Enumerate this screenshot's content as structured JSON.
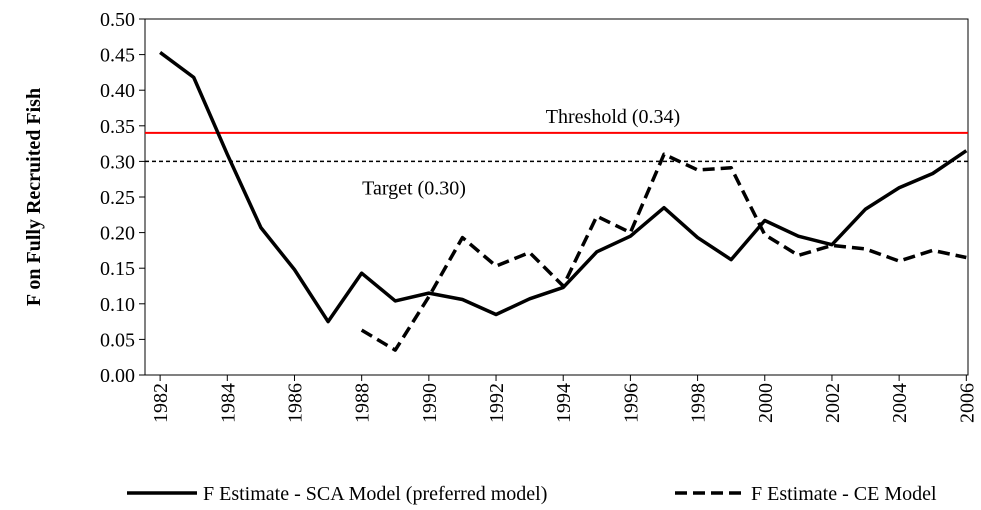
{
  "chart_data": {
    "type": "line",
    "y_label": "F on Fully Recruited Fish",
    "x": [
      1982,
      1983,
      1984,
      1985,
      1986,
      1987,
      1988,
      1989,
      1990,
      1991,
      1992,
      1993,
      1994,
      1995,
      1996,
      1997,
      1998,
      1999,
      2000,
      2001,
      2002,
      2003,
      2004,
      2005,
      2006
    ],
    "xlim": [
      1981.55,
      2006.05
    ],
    "xticks": [
      1982,
      1984,
      1986,
      1988,
      1990,
      1992,
      1994,
      1996,
      1998,
      2000,
      2002,
      2004,
      2006
    ],
    "ylim": [
      0,
      0.5
    ],
    "yticks": [
      {
        "value": 0,
        "label": "0.00"
      },
      {
        "value": 0.05,
        "label": "0.05"
      },
      {
        "value": 0.1,
        "label": "0.10"
      },
      {
        "value": 0.15,
        "label": "0.15"
      },
      {
        "value": 0.2,
        "label": "0.20"
      },
      {
        "value": 0.25,
        "label": "0.25"
      },
      {
        "value": 0.3,
        "label": "0.30"
      },
      {
        "value": 0.35,
        "label": "0.35"
      },
      {
        "value": 0.4,
        "label": "0.40"
      },
      {
        "value": 0.45,
        "label": "0.45"
      },
      {
        "value": 0.5,
        "label": "0.50"
      }
    ],
    "series": [
      {
        "name": "F Estimate - SCA Model (preferred model)",
        "color": "#000000",
        "dash": false,
        "values": [
          0.453,
          0.418,
          0.31,
          0.207,
          0.148,
          0.075,
          0.143,
          0.104,
          0.115,
          0.106,
          0.085,
          0.107,
          0.123,
          0.173,
          0.195,
          0.235,
          0.193,
          0.162,
          0.217,
          0.195,
          0.183,
          0.233,
          0.263,
          0.283,
          0.315
        ]
      },
      {
        "name": "F Estimate - CE Model",
        "color": "#000000",
        "dash": true,
        "values": [
          null,
          null,
          null,
          null,
          null,
          null,
          0.063,
          0.035,
          0.11,
          0.193,
          0.153,
          0.172,
          0.125,
          0.223,
          0.2,
          0.31,
          0.288,
          0.291,
          0.197,
          0.168,
          0.182,
          0.177,
          0.16,
          0.175,
          0.165
        ]
      }
    ],
    "reference_lines": [
      {
        "value": 0.34,
        "label": "Threshold  (0.34)",
        "color": "#ff0000",
        "dash": false
      },
      {
        "value": 0.3,
        "label": "Target  (0.30)",
        "color": "#000000",
        "dash": true
      }
    ],
    "legend": "bottom"
  }
}
